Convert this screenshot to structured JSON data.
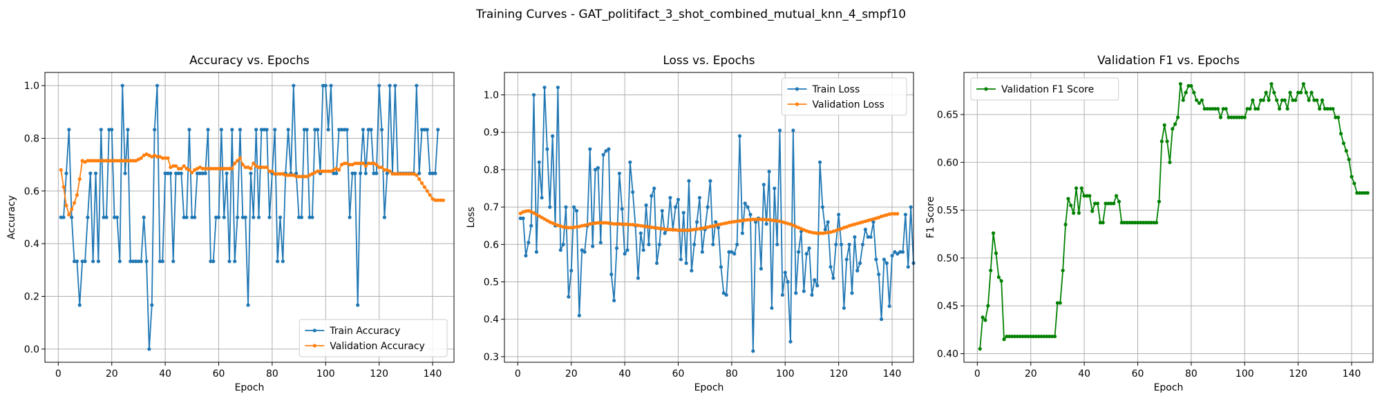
{
  "suptitle": "Training Curves - GAT_politifact_3_shot_combined_mutual_knn_4_smpf10",
  "chart_data": [
    {
      "type": "line",
      "title": "Accuracy vs. Epochs",
      "xlabel": "Epoch",
      "ylabel": "Accuracy",
      "xlim": [
        -5,
        148
      ],
      "ylim": [
        -0.05,
        1.05
      ],
      "xticks": [
        0,
        20,
        40,
        60,
        80,
        100,
        120,
        140
      ],
      "yticks": [
        0.0,
        0.2,
        0.4,
        0.6,
        0.8,
        1.0
      ],
      "ytick_labels": [
        "0.0",
        "0.2",
        "0.4",
        "0.6",
        "0.8",
        "1.0"
      ],
      "grid": true,
      "legend_position": "lower-right",
      "series": [
        {
          "name": "Train Accuracy",
          "color": "#1f77b4",
          "x_start": 1,
          "values": [
            0.5,
            0.5,
            0.667,
            0.833,
            0.5,
            0.333,
            0.333,
            0.167,
            0.333,
            0.333,
            0.5,
            0.667,
            0.333,
            0.667,
            0.333,
            0.833,
            0.5,
            0.5,
            0.833,
            0.833,
            0.5,
            0.5,
            0.333,
            1.0,
            0.667,
            0.833,
            0.333,
            0.333,
            0.333,
            0.333,
            0.333,
            0.5,
            0.333,
            0.0,
            0.167,
            0.833,
            1.0,
            0.333,
            0.333,
            0.667,
            0.667,
            0.667,
            0.333,
            0.667,
            0.667,
            0.667,
            0.5,
            0.5,
            0.833,
            0.5,
            0.5,
            0.667,
            0.667,
            0.667,
            0.667,
            0.833,
            0.333,
            0.333,
            0.5,
            0.5,
            0.833,
            0.5,
            0.667,
            0.333,
            0.833,
            0.333,
            0.5,
            0.833,
            0.5,
            0.5,
            0.167,
            0.667,
            0.5,
            0.833,
            0.5,
            0.833,
            0.833,
            0.833,
            0.5,
            0.667,
            0.833,
            0.333,
            0.5,
            0.333,
            0.667,
            0.833,
            0.667,
            1.0,
            0.667,
            0.5,
            0.5,
            0.833,
            0.833,
            0.5,
            0.5,
            0.833,
            0.833,
            0.667,
            1.0,
            1.0,
            0.833,
            1.0,
            0.667,
            0.667,
            0.833,
            0.833,
            0.833,
            0.833,
            0.5,
            0.667,
            0.667,
            0.167,
            0.667,
            0.833,
            0.667,
            0.833,
            0.833,
            0.667,
            0.667,
            1.0,
            0.833,
            0.5,
            0.667,
            1.0,
            0.667,
            1.0,
            0.667,
            0.667,
            0.667,
            0.667,
            0.667,
            0.667,
            0.667,
            1.0,
            0.667,
            0.833,
            0.833,
            0.833,
            0.667,
            0.667,
            0.667,
            0.833
          ]
        },
        {
          "name": "Validation Accuracy",
          "color": "#ff7f0e",
          "x_start": 1,
          "values": [
            0.68,
            0.615,
            0.545,
            0.51,
            0.53,
            0.555,
            0.585,
            0.645,
            0.715,
            0.71,
            0.715,
            0.715,
            0.715,
            0.715,
            0.715,
            0.715,
            0.715,
            0.715,
            0.715,
            0.715,
            0.715,
            0.715,
            0.715,
            0.715,
            0.715,
            0.715,
            0.715,
            0.715,
            0.715,
            0.72,
            0.725,
            0.735,
            0.74,
            0.735,
            0.73,
            0.735,
            0.73,
            0.73,
            0.725,
            0.725,
            0.725,
            0.69,
            0.695,
            0.695,
            0.685,
            0.685,
            0.695,
            0.685,
            0.68,
            0.67,
            0.68,
            0.685,
            0.69,
            0.685,
            0.685,
            0.685,
            0.685,
            0.685,
            0.685,
            0.685,
            0.685,
            0.685,
            0.685,
            0.685,
            0.685,
            0.705,
            0.715,
            0.725,
            0.7,
            0.69,
            0.69,
            0.685,
            0.705,
            0.695,
            0.69,
            0.69,
            0.69,
            0.69,
            0.675,
            0.675,
            0.665,
            0.665,
            0.665,
            0.665,
            0.66,
            0.66,
            0.66,
            0.66,
            0.655,
            0.655,
            0.655,
            0.655,
            0.655,
            0.66,
            0.665,
            0.67,
            0.675,
            0.675,
            0.675,
            0.675,
            0.675,
            0.675,
            0.68,
            0.685,
            0.68,
            0.7,
            0.705,
            0.705,
            0.7,
            0.7,
            0.705,
            0.705,
            0.705,
            0.705,
            0.695,
            0.705,
            0.705,
            0.705,
            0.7,
            0.69,
            0.69,
            0.68,
            0.68,
            0.675,
            0.665,
            0.665,
            0.665,
            0.665,
            0.665,
            0.665,
            0.665,
            0.665,
            0.665,
            0.66,
            0.645,
            0.63,
            0.615,
            0.6,
            0.585,
            0.57,
            0.565,
            0.565,
            0.565,
            0.565
          ]
        }
      ]
    },
    {
      "type": "line",
      "title": "Loss vs. Epochs",
      "xlabel": "Epoch",
      "ylabel": "Loss",
      "xlim": [
        -5,
        148
      ],
      "ylim": [
        0.285,
        1.06
      ],
      "xticks": [
        0,
        20,
        40,
        60,
        80,
        100,
        120,
        140
      ],
      "yticks": [
        0.3,
        0.4,
        0.5,
        0.6,
        0.7,
        0.8,
        0.9,
        1.0
      ],
      "ytick_labels": [
        "0.3",
        "0.4",
        "0.5",
        "0.6",
        "0.7",
        "0.8",
        "0.9",
        "1.0"
      ],
      "grid": true,
      "legend_position": "upper-right",
      "series": [
        {
          "name": "Train Loss",
          "color": "#1f77b4",
          "x_start": 1,
          "values": [
            0.67,
            0.67,
            0.57,
            0.605,
            0.65,
            1.0,
            0.58,
            0.82,
            0.725,
            1.02,
            0.855,
            0.7,
            0.89,
            0.65,
            1.02,
            0.585,
            0.6,
            0.7,
            0.46,
            0.53,
            0.7,
            0.69,
            0.41,
            0.585,
            0.58,
            0.65,
            0.855,
            0.595,
            0.8,
            0.805,
            0.605,
            0.84,
            0.85,
            0.855,
            0.52,
            0.45,
            0.59,
            0.79,
            0.695,
            0.575,
            0.585,
            0.82,
            0.74,
            0.65,
            0.51,
            0.63,
            0.585,
            0.705,
            0.6,
            0.73,
            0.75,
            0.55,
            0.6,
            0.69,
            0.63,
            0.64,
            0.725,
            0.64,
            0.7,
            0.72,
            0.56,
            0.685,
            0.55,
            0.77,
            0.53,
            0.6,
            0.66,
            0.725,
            0.58,
            0.64,
            0.7,
            0.77,
            0.6,
            0.66,
            0.645,
            0.54,
            0.47,
            0.465,
            0.58,
            0.58,
            0.575,
            0.6,
            0.89,
            0.63,
            0.71,
            0.7,
            0.68,
            0.315,
            0.66,
            0.67,
            0.535,
            0.76,
            0.655,
            0.795,
            0.43,
            0.75,
            0.6,
            0.905,
            0.465,
            0.525,
            0.5,
            0.34,
            0.905,
            0.47,
            0.58,
            0.635,
            0.475,
            0.575,
            0.59,
            0.465,
            0.505,
            0.49,
            0.82,
            0.7,
            0.64,
            0.66,
            0.54,
            0.51,
            0.6,
            0.68,
            0.6,
            0.43,
            0.56,
            0.6,
            0.47,
            0.62,
            0.53,
            0.55,
            0.6,
            0.64,
            0.62,
            0.62,
            0.66,
            0.56,
            0.52,
            0.4,
            0.56,
            0.55,
            0.435,
            0.57,
            0.58,
            0.575,
            0.58,
            0.58,
            0.68,
            0.54,
            0.7,
            0.55
          ]
        },
        {
          "name": "Validation Loss",
          "color": "#ff7f0e",
          "x_start": 1,
          "values": [
            0.683,
            0.687,
            0.689,
            0.69,
            0.688,
            0.684,
            0.68,
            0.676,
            0.672,
            0.668,
            0.664,
            0.66,
            0.657,
            0.654,
            0.651,
            0.649,
            0.647,
            0.646,
            0.645,
            0.645,
            0.646,
            0.647,
            0.648,
            0.65,
            0.651,
            0.653,
            0.655,
            0.656,
            0.657,
            0.658,
            0.658,
            0.658,
            0.658,
            0.657,
            0.656,
            0.655,
            0.655,
            0.655,
            0.654,
            0.654,
            0.654,
            0.653,
            0.653,
            0.652,
            0.651,
            0.65,
            0.649,
            0.648,
            0.647,
            0.646,
            0.645,
            0.644,
            0.643,
            0.642,
            0.641,
            0.64,
            0.64,
            0.639,
            0.639,
            0.638,
            0.638,
            0.638,
            0.638,
            0.638,
            0.639,
            0.64,
            0.641,
            0.642,
            0.643,
            0.645,
            0.646,
            0.648,
            0.649,
            0.651,
            0.653,
            0.654,
            0.656,
            0.657,
            0.659,
            0.66,
            0.661,
            0.662,
            0.663,
            0.664,
            0.665,
            0.666,
            0.666,
            0.667,
            0.667,
            0.667,
            0.667,
            0.667,
            0.666,
            0.666,
            0.665,
            0.664,
            0.663,
            0.662,
            0.66,
            0.658,
            0.656,
            0.654,
            0.651,
            0.648,
            0.645,
            0.642,
            0.639,
            0.636,
            0.634,
            0.632,
            0.631,
            0.63,
            0.63,
            0.63,
            0.631,
            0.632,
            0.633,
            0.635,
            0.637,
            0.64,
            0.642,
            0.645,
            0.647,
            0.65,
            0.652,
            0.654,
            0.656,
            0.658,
            0.66,
            0.662,
            0.664,
            0.666,
            0.668,
            0.67,
            0.672,
            0.675,
            0.677,
            0.679,
            0.681,
            0.682,
            0.682,
            0.682
          ]
        }
      ]
    },
    {
      "type": "line",
      "title": "Validation F1 vs. Epochs",
      "xlabel": "Epoch",
      "ylabel": "F1 Score",
      "xlim": [
        -5,
        148
      ],
      "ylim": [
        0.391,
        0.694
      ],
      "xticks": [
        0,
        20,
        40,
        60,
        80,
        100,
        120,
        140
      ],
      "yticks": [
        0.4,
        0.45,
        0.5,
        0.55,
        0.6,
        0.65
      ],
      "ytick_labels": [
        "0.40",
        "0.45",
        "0.50",
        "0.55",
        "0.60",
        "0.65"
      ],
      "grid": true,
      "legend_position": "upper-left",
      "series": [
        {
          "name": "Validation F1 Score",
          "color": "#008000",
          "x_start": 1,
          "values": [
            0.405,
            0.438,
            0.435,
            0.45,
            0.487,
            0.526,
            0.505,
            0.48,
            0.476,
            0.415,
            0.418,
            0.418,
            0.418,
            0.418,
            0.418,
            0.418,
            0.418,
            0.418,
            0.418,
            0.418,
            0.418,
            0.418,
            0.418,
            0.418,
            0.418,
            0.418,
            0.418,
            0.418,
            0.418,
            0.453,
            0.453,
            0.487,
            0.535,
            0.562,
            0.555,
            0.547,
            0.573,
            0.547,
            0.573,
            0.565,
            0.565,
            0.565,
            0.549,
            0.557,
            0.557,
            0.537,
            0.537,
            0.557,
            0.557,
            0.557,
            0.557,
            0.565,
            0.559,
            0.537,
            0.537,
            0.537,
            0.537,
            0.537,
            0.537,
            0.537,
            0.537,
            0.537,
            0.537,
            0.537,
            0.537,
            0.537,
            0.537,
            0.559,
            0.622,
            0.639,
            0.622,
            0.6,
            0.635,
            0.64,
            0.647,
            0.682,
            0.665,
            0.673,
            0.68,
            0.68,
            0.673,
            0.665,
            0.662,
            0.665,
            0.656,
            0.656,
            0.656,
            0.656,
            0.656,
            0.656,
            0.647,
            0.656,
            0.656,
            0.647,
            0.647,
            0.647,
            0.647,
            0.647,
            0.647,
            0.647,
            0.656,
            0.656,
            0.665,
            0.656,
            0.656,
            0.665,
            0.665,
            0.673,
            0.665,
            0.682,
            0.673,
            0.665,
            0.656,
            0.665,
            0.665,
            0.656,
            0.673,
            0.665,
            0.665,
            0.673,
            0.673,
            0.682,
            0.673,
            0.665,
            0.673,
            0.665,
            0.665,
            0.656,
            0.665,
            0.656,
            0.656,
            0.656,
            0.656,
            0.647,
            0.647,
            0.63,
            0.62,
            0.612,
            0.603,
            0.585,
            0.578,
            0.568,
            0.568,
            0.568,
            0.568,
            0.568
          ]
        }
      ]
    }
  ]
}
